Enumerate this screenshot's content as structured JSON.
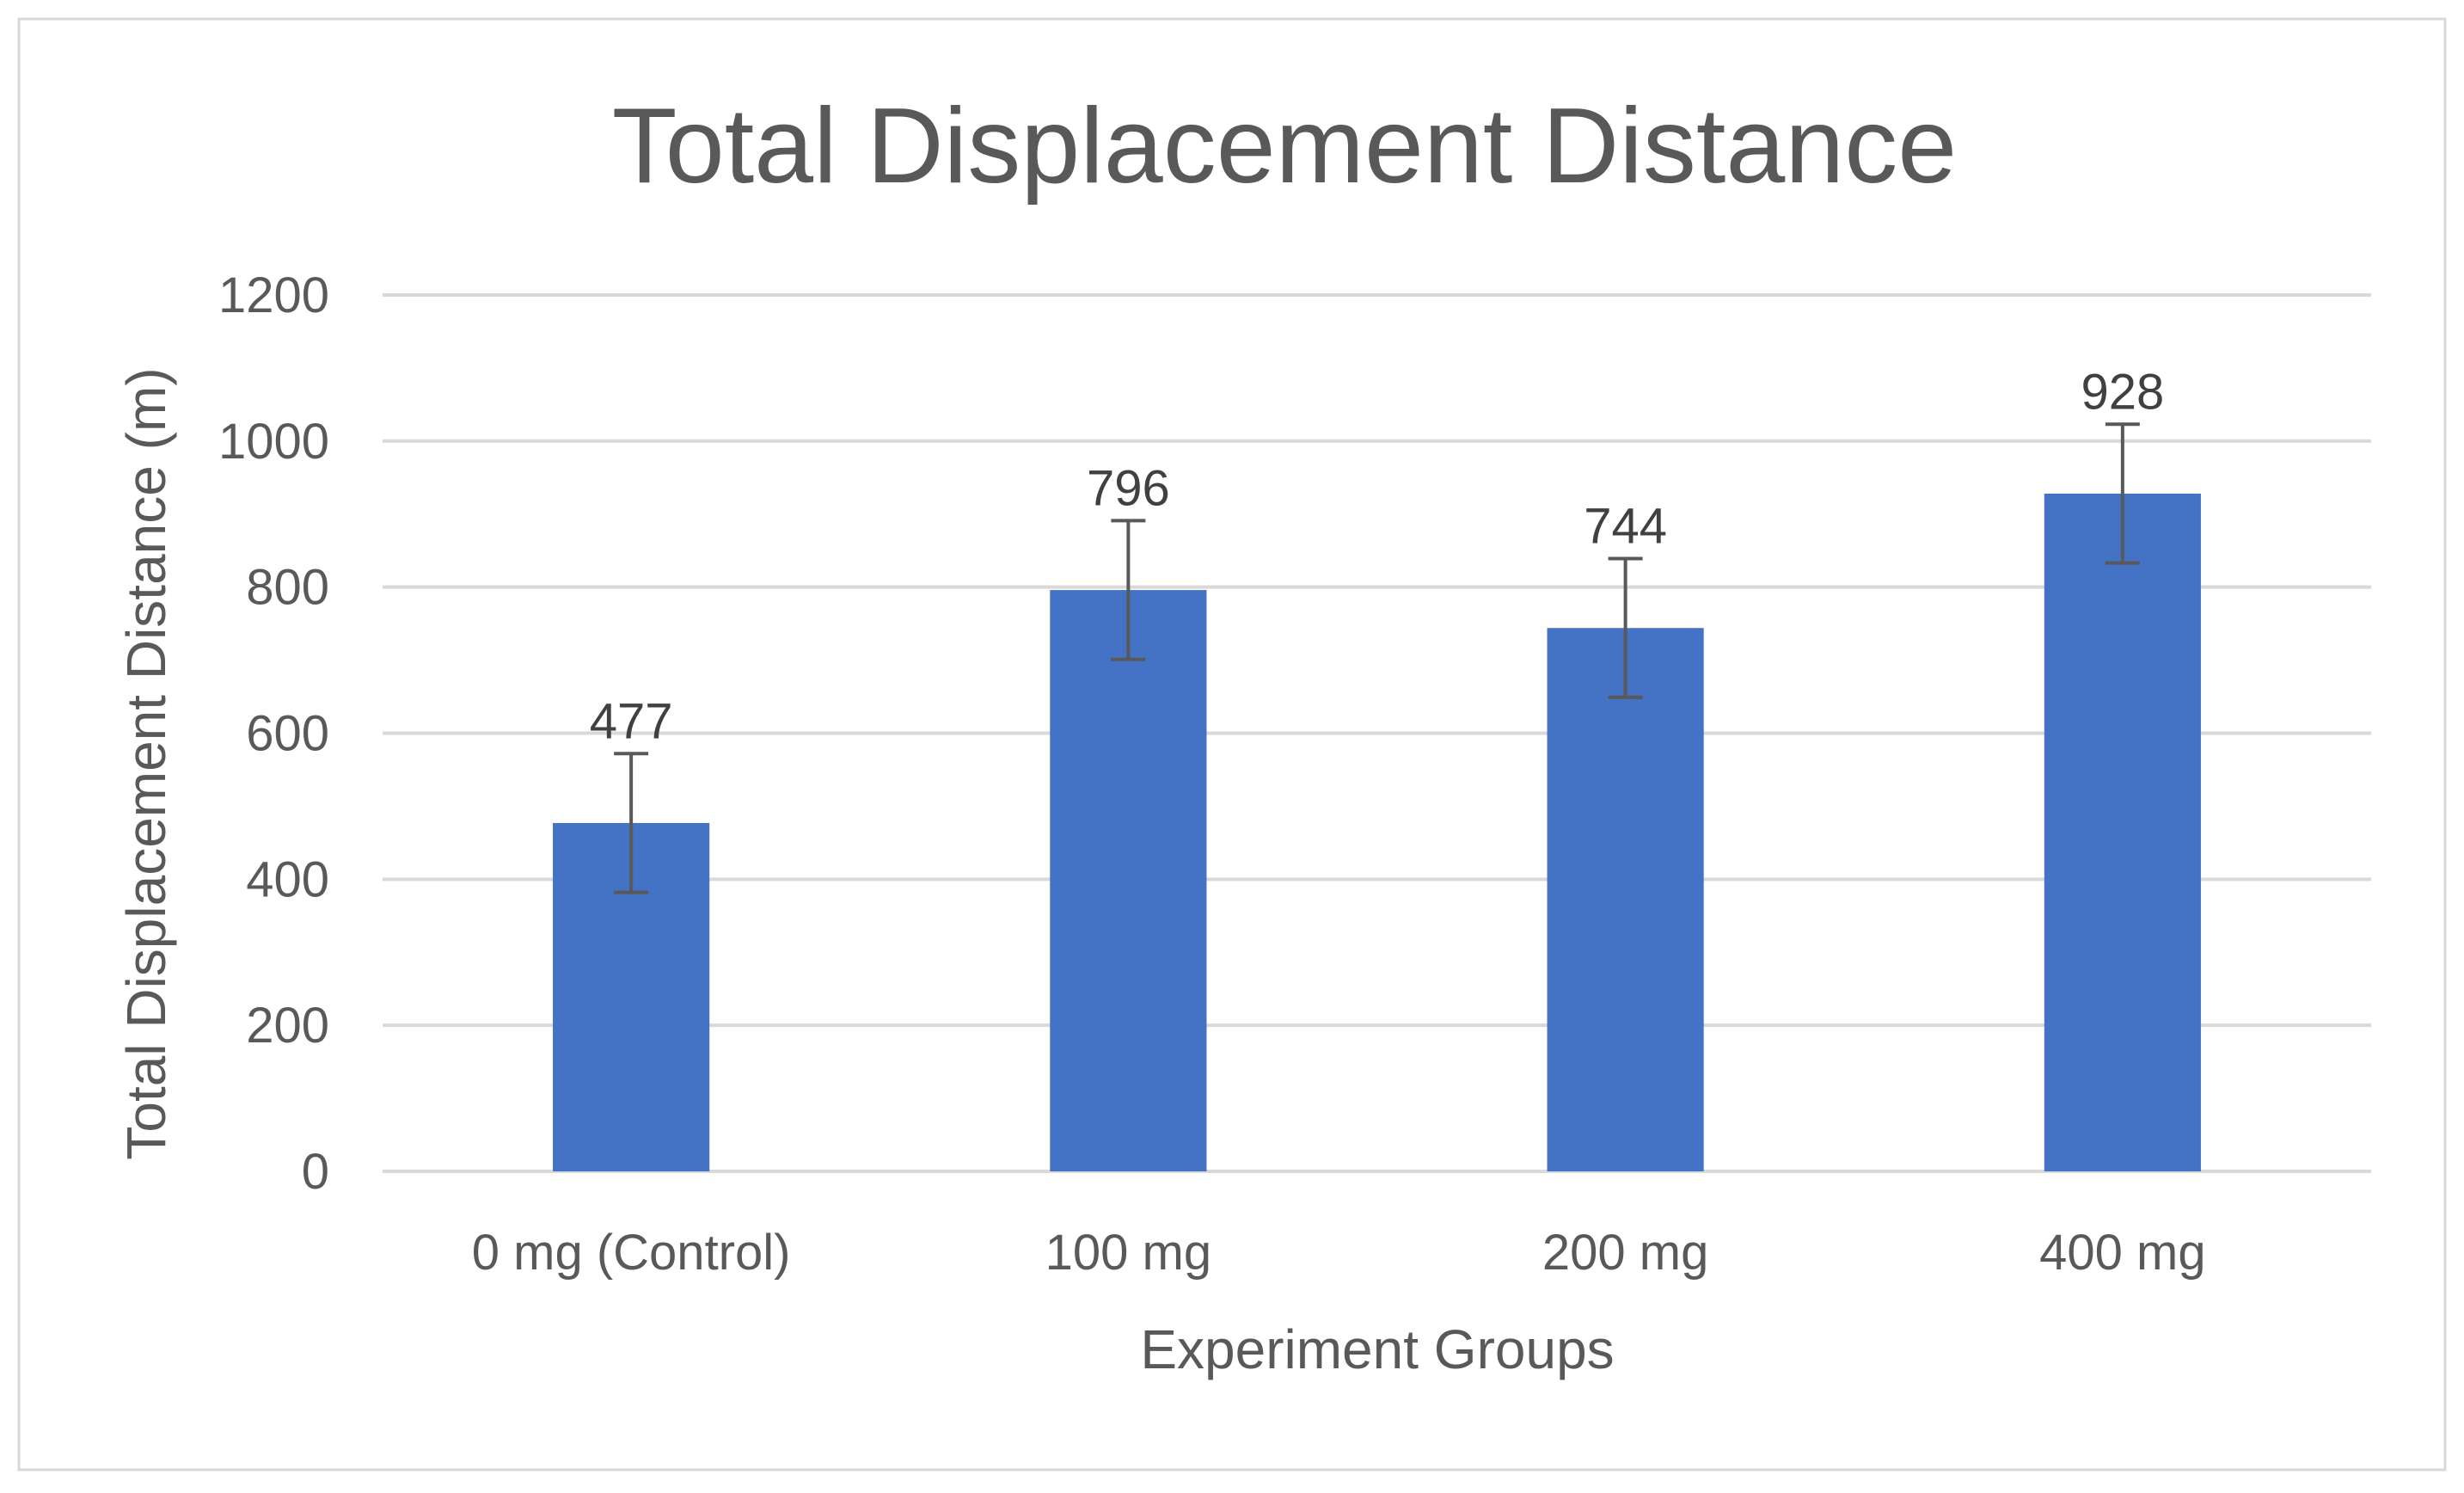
{
  "chart_data": {
    "type": "bar",
    "title": "Total Displacement Distance",
    "xlabel": "Experiment Groups",
    "ylabel": "Total Displacement Distance (m)",
    "categories": [
      "0 mg (Control)",
      "100 mg",
      "200 mg",
      "400 mg"
    ],
    "values": [
      477,
      796,
      744,
      928
    ],
    "data_labels": [
      "477",
      "796",
      "744",
      "928"
    ],
    "error_plus": [
      95,
      95,
      95,
      95
    ],
    "error_minus": [
      95,
      95,
      95,
      95
    ],
    "ylim": [
      0,
      1200
    ],
    "yticks": [
      0,
      200,
      400,
      600,
      800,
      1000,
      1200
    ],
    "ytick_labels": [
      "0",
      "200",
      "400",
      "600",
      "800",
      "1000",
      "1200"
    ],
    "grid": true,
    "legend": "none",
    "colors": {
      "bar": "#4472c4",
      "grid": "#d9d9d9",
      "text": "#595959",
      "error": "#595959"
    }
  }
}
